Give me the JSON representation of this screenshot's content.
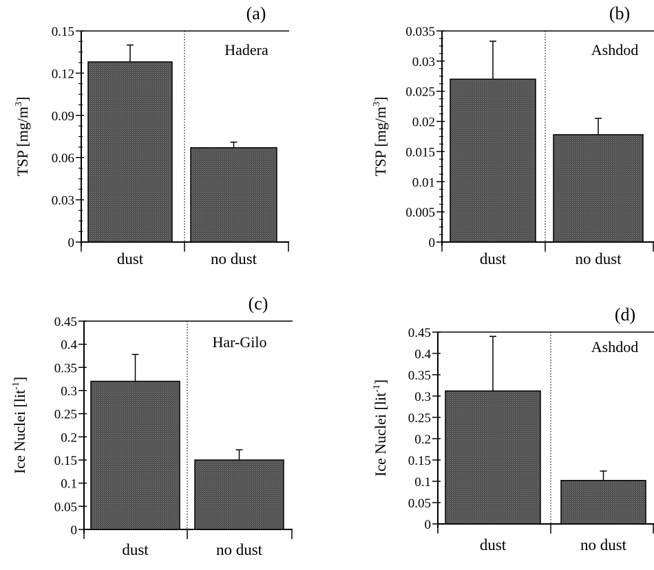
{
  "chart_data": [
    {
      "type": "bar",
      "panel_label": "(a)",
      "site": "Hadera",
      "ylabel_main": "TSP  [mg/m",
      "ylabel_sup": "3",
      "ylabel_end": "]",
      "categories": [
        "dust",
        "no dust"
      ],
      "values": [
        0.128,
        0.067
      ],
      "errors": [
        0.012,
        0.004
      ],
      "ylim": [
        0,
        0.15
      ],
      "yticks": [
        0,
        0.03,
        0.06,
        0.09,
        0.12,
        0.15
      ],
      "ytick_labels": [
        "0",
        "0.03",
        "0.06",
        "0.09",
        "0.12",
        "0.15"
      ],
      "minor_ticks_per_major": 4
    },
    {
      "type": "bar",
      "panel_label": "(b)",
      "site": "Ashdod",
      "ylabel_main": "TSP  [mg/m",
      "ylabel_sup": "3",
      "ylabel_end": "]",
      "categories": [
        "dust",
        "no dust"
      ],
      "values": [
        0.027,
        0.0178
      ],
      "errors": [
        0.0063,
        0.0027
      ],
      "ylim": [
        0,
        0.035
      ],
      "yticks": [
        0,
        0.005,
        0.01,
        0.015,
        0.02,
        0.025,
        0.03,
        0.035
      ],
      "ytick_labels": [
        "0",
        "0.005",
        "0.01",
        "0.015",
        "0.02",
        "0.025",
        "0.03",
        "0.035"
      ],
      "minor_ticks_per_major": 4
    },
    {
      "type": "bar",
      "panel_label": "(c)",
      "site": "Har-Gilo",
      "ylabel_main": "Ice Nuclei [lit",
      "ylabel_sup": "-1",
      "ylabel_end": "]",
      "categories": [
        "dust",
        "no dust"
      ],
      "values": [
        0.32,
        0.15
      ],
      "errors": [
        0.058,
        0.022
      ],
      "ylim": [
        0,
        0.45
      ],
      "yticks": [
        0,
        0.05,
        0.1,
        0.15,
        0.2,
        0.25,
        0.3,
        0.35,
        0.4,
        0.45
      ],
      "ytick_labels": [
        "0",
        "0.05",
        "0.1",
        "0.15",
        "0.2",
        "0.25",
        "0.3",
        "0.35",
        "0.4",
        "0.45"
      ],
      "minor_ticks_per_major": 1
    },
    {
      "type": "bar",
      "panel_label": "(d)",
      "site": "Ashdod",
      "ylabel_main": "Ice Nuclei [lit",
      "ylabel_sup": "-1",
      "ylabel_end": "]",
      "categories": [
        "dust",
        "no dust"
      ],
      "values": [
        0.312,
        0.102
      ],
      "errors": [
        0.128,
        0.022
      ],
      "ylim": [
        0,
        0.45
      ],
      "yticks": [
        0,
        0.05,
        0.1,
        0.15,
        0.2,
        0.25,
        0.3,
        0.35,
        0.4,
        0.45
      ],
      "ytick_labels": [
        "0",
        "0.05",
        "0.1",
        "0.15",
        "0.2",
        "0.25",
        "0.3",
        "0.35",
        "0.4",
        "0.45"
      ],
      "minor_ticks_per_major": 1
    }
  ],
  "style": {
    "bar_fill": "#4a4a4a",
    "bar_pattern_dot": "#8a8a8a",
    "axis_color": "#000000"
  }
}
